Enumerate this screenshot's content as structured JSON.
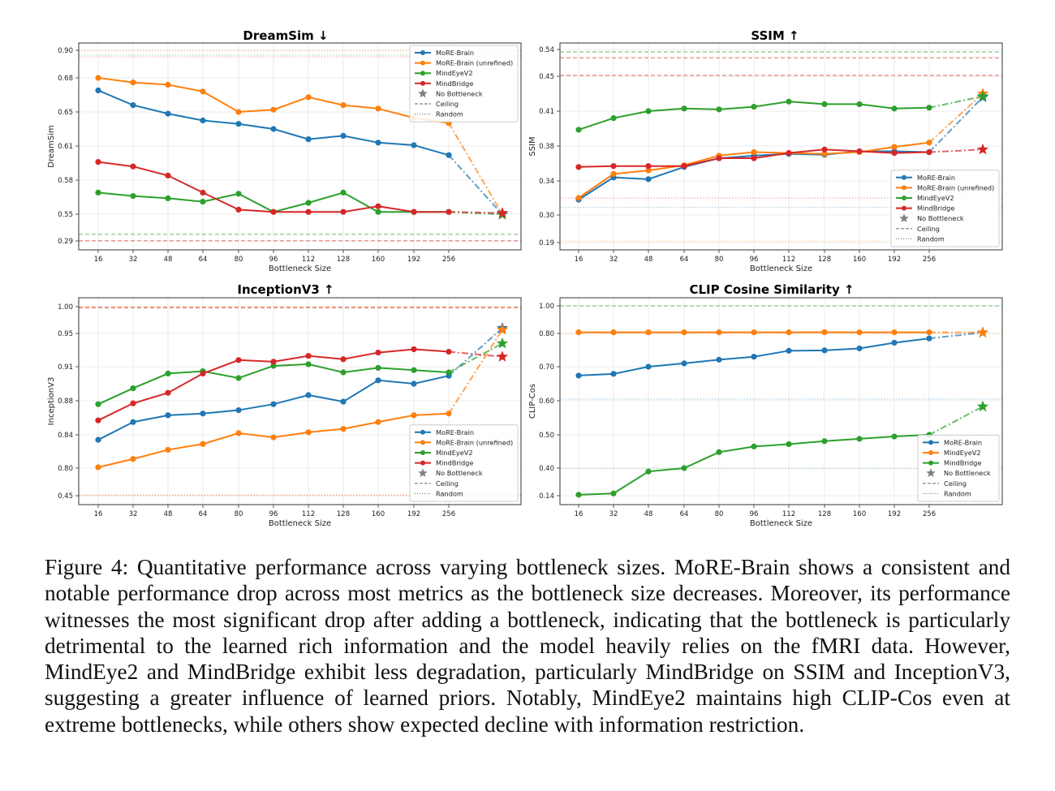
{
  "figure": {
    "caption": "Figure 4: Quantitative performance across varying bottleneck sizes. MoRE-Brain shows a consistent and notable performance drop across most metrics as the bottleneck size decreases.  Moreover, its performance witnesses the most significant drop after adding a bottleneck, indicating that the bottleneck is particularly detrimental to the learned rich information and the model heavily relies on the fMRI data.  However, MindEye2 and MindBridge exhibit less degradation, particularly MindBridge on SSIM and InceptionV3, suggesting a greater influence of learned priors. Notably, MindEye2 maintains high CLIP-Cos even at extreme bottlenecks, while others show expected decline with information restriction."
  },
  "colors": {
    "blue": "#1f77b4",
    "orange": "#ff7f0e",
    "green": "#2ca02c",
    "red": "#d62728",
    "gray": "#7f7f7f"
  },
  "chart_data": [
    {
      "type": "line",
      "title": "DreamSim ↓",
      "xlabel": "Bottleneck Size",
      "ylabel": "DreamSim",
      "categories": [
        "16",
        "32",
        "48",
        "64",
        "80",
        "96",
        "112",
        "128",
        "160",
        "192",
        "256"
      ],
      "extra_point_label": "No Bottleneck",
      "yticks": [
        0.29,
        0.55,
        0.58,
        0.61,
        0.65,
        0.68,
        0.9
      ],
      "ylim": [
        0.28,
        0.915
      ],
      "grid": true,
      "legend_position": "top-right",
      "legend": [
        "MoRE-Brain",
        "MoRE-Brain (unrefined)",
        "MindEyeV2",
        "MindBridge",
        "No Bottleneck",
        "Ceiling",
        "Random"
      ],
      "series": [
        {
          "name": "MoRE-Brain",
          "color": "blue",
          "values": [
            0.669,
            0.656,
            0.648,
            0.64,
            0.636,
            0.63,
            0.618,
            0.622,
            0.614,
            0.611,
            0.602
          ],
          "no_bottleneck": 0.547
        },
        {
          "name": "MoRE-Brain (unrefined)",
          "color": "orange",
          "values": [
            0.68,
            0.676,
            0.674,
            0.668,
            0.65,
            0.652,
            0.663,
            0.656,
            0.653,
            0.643,
            0.637
          ],
          "no_bottleneck": 0.549
        },
        {
          "name": "MindEyeV2",
          "color": "green",
          "values": [
            0.569,
            0.566,
            0.564,
            0.561,
            0.568,
            0.552,
            0.56,
            0.569,
            0.552,
            0.552,
            0.552
          ],
          "no_bottleneck": 0.548
        },
        {
          "name": "MindBridge",
          "color": "red",
          "values": [
            0.596,
            0.592,
            0.584,
            0.569,
            0.554,
            0.552,
            0.552,
            0.552,
            0.557,
            0.552,
            0.552
          ],
          "no_bottleneck": 0.551
        }
      ],
      "reference_lines": [
        {
          "kind": "Random",
          "color": "orange",
          "value": 0.897
        },
        {
          "kind": "Random",
          "color": "green",
          "value": 0.862
        },
        {
          "kind": "Random",
          "color": "red",
          "value": 0.847
        },
        {
          "kind": "Ceiling",
          "color": "green",
          "value": 0.355
        },
        {
          "kind": "Ceiling",
          "color": "red",
          "value": 0.292
        }
      ]
    },
    {
      "type": "line",
      "title": "SSIM ↑",
      "xlabel": "Bottleneck Size",
      "ylabel": "SSIM",
      "categories": [
        "16",
        "32",
        "48",
        "64",
        "80",
        "96",
        "112",
        "128",
        "160",
        "192",
        "256"
      ],
      "extra_point_label": "No Bottleneck",
      "yticks": [
        0.19,
        0.3,
        0.34,
        0.38,
        0.41,
        0.45,
        0.54
      ],
      "ylim": [
        0.18,
        0.555
      ],
      "grid": true,
      "legend_position": "bottom-right",
      "legend": [
        "MoRE-Brain",
        "MoRE-Brain (unrefined)",
        "MindEyeV2",
        "MindBridge",
        "No Bottleneck",
        "Ceiling",
        "Random"
      ],
      "series": [
        {
          "name": "MoRE-Brain",
          "color": "blue",
          "values": [
            0.318,
            0.344,
            0.342,
            0.356,
            0.366,
            0.369,
            0.371,
            0.37,
            0.374,
            0.374,
            0.373
          ],
          "no_bottleneck": 0.426
        },
        {
          "name": "MoRE-Brain (unrefined)",
          "color": "orange",
          "values": [
            0.32,
            0.348,
            0.352,
            0.358,
            0.369,
            0.373,
            0.372,
            0.371,
            0.373,
            0.379,
            0.383
          ],
          "no_bottleneck": 0.43
        },
        {
          "name": "MindEyeV2",
          "color": "green",
          "values": [
            0.394,
            0.404,
            0.41,
            0.413,
            0.412,
            0.415,
            0.421,
            0.418,
            0.418,
            0.413,
            0.414
          ],
          "no_bottleneck": 0.427
        },
        {
          "name": "MindBridge",
          "color": "red",
          "values": [
            0.356,
            0.357,
            0.357,
            0.357,
            0.366,
            0.366,
            0.372,
            0.376,
            0.374,
            0.372,
            0.373
          ],
          "no_bottleneck": 0.376
        }
      ],
      "reference_lines": [
        {
          "kind": "Ceiling",
          "color": "green",
          "value": 0.532
        },
        {
          "kind": "Ceiling",
          "color": "red",
          "value": 0.512
        },
        {
          "kind": "Ceiling",
          "color": "red",
          "value": 0.453
        },
        {
          "kind": "Random",
          "color": "red",
          "value": 0.32
        },
        {
          "kind": "Random",
          "color": "blue",
          "value": 0.309
        },
        {
          "kind": "Random",
          "color": "orange",
          "value": 0.196
        }
      ]
    },
    {
      "type": "line",
      "title": "InceptionV3 ↑",
      "xlabel": "Bottleneck Size",
      "ylabel": "InceptionV3",
      "categories": [
        "16",
        "32",
        "48",
        "64",
        "80",
        "96",
        "112",
        "128",
        "160",
        "192",
        "256"
      ],
      "extra_point_label": "No Bottleneck",
      "yticks": [
        0.45,
        0.8,
        0.84,
        0.88,
        0.91,
        0.95,
        1.0
      ],
      "ylim": [
        0.44,
        1.015
      ],
      "grid": true,
      "legend_position": "bottom-right",
      "legend": [
        "MoRE-Brain",
        "MoRE-Brain (unrefined)",
        "MindEyeV2",
        "MindBridge",
        "No Bottleneck",
        "Ceiling",
        "Random"
      ],
      "series": [
        {
          "name": "MoRE-Brain",
          "color": "blue",
          "values": [
            0.834,
            0.855,
            0.863,
            0.865,
            0.869,
            0.876,
            0.885,
            0.879,
            0.898,
            0.895,
            0.902
          ],
          "no_bottleneck": 0.96
        },
        {
          "name": "MoRE-Brain (unrefined)",
          "color": "orange",
          "values": [
            0.801,
            0.811,
            0.822,
            0.829,
            0.842,
            0.837,
            0.843,
            0.847,
            0.855,
            0.863,
            0.865
          ],
          "no_bottleneck": 0.957
        },
        {
          "name": "MindEyeV2",
          "color": "green",
          "values": [
            0.876,
            0.891,
            0.904,
            0.906,
            0.9,
            0.911,
            0.913,
            0.905,
            0.909,
            0.907,
            0.905
          ],
          "no_bottleneck": 0.938
        },
        {
          "name": "MindBridge",
          "color": "red",
          "values": [
            0.857,
            0.877,
            0.887,
            0.904,
            0.918,
            0.916,
            0.923,
            0.919,
            0.927,
            0.931,
            0.928
          ],
          "no_bottleneck": 0.922
        }
      ],
      "reference_lines": [
        {
          "kind": "Ceiling",
          "color": "orange",
          "value": 0.999
        },
        {
          "kind": "Ceiling",
          "color": "red",
          "value": 0.998
        },
        {
          "kind": "Random",
          "color": "orange",
          "value": 0.459
        },
        {
          "kind": "Random",
          "color": "red",
          "value": 0.452
        }
      ]
    },
    {
      "type": "line",
      "title": "CLIP Cosine Similarity ↑",
      "xlabel": "Bottleneck Size",
      "ylabel": "CLIP-Cos",
      "categories": [
        "16",
        "32",
        "48",
        "64",
        "80",
        "96",
        "112",
        "128",
        "160",
        "192",
        "256"
      ],
      "extra_point_label": "No Bottleneck",
      "yticks": [
        0.14,
        0.4,
        0.5,
        0.6,
        0.7,
        0.8,
        1.0
      ],
      "ylim": [
        0.13,
        1.015
      ],
      "grid": true,
      "legend_position": "bottom-right",
      "legend": [
        "MoRE-Brain",
        "MindEyeV2",
        "MindBridge",
        "No Bottleneck",
        "Ceiling",
        "Random"
      ],
      "series": [
        {
          "name": "MoRE-Brain",
          "color": "blue",
          "values": [
            0.674,
            0.679,
            0.7,
            0.71,
            0.721,
            0.73,
            0.748,
            0.749,
            0.755,
            0.772,
            0.785
          ],
          "no_bottleneck": 0.806
        },
        {
          "name": "MindEyeV2",
          "color": "orange",
          "values": [
            0.808,
            0.808,
            0.808,
            0.808,
            0.808,
            0.808,
            0.808,
            0.809,
            0.808,
            0.808,
            0.808
          ],
          "no_bottleneck": 0.807
        },
        {
          "name": "MindBridge",
          "color": "green",
          "values": [
            0.149,
            0.161,
            0.368,
            0.4,
            0.448,
            0.465,
            0.472,
            0.481,
            0.488,
            0.495,
            0.5
          ],
          "no_bottleneck": 0.583
        }
      ],
      "reference_lines": [
        {
          "kind": "Ceiling",
          "color": "green",
          "value": 1.0
        },
        {
          "kind": "Random",
          "color": "orange",
          "value": 0.8
        },
        {
          "kind": "Random",
          "color": "blue",
          "value": 0.605
        },
        {
          "kind": "Random",
          "color": "green",
          "value": 0.397
        }
      ]
    }
  ]
}
